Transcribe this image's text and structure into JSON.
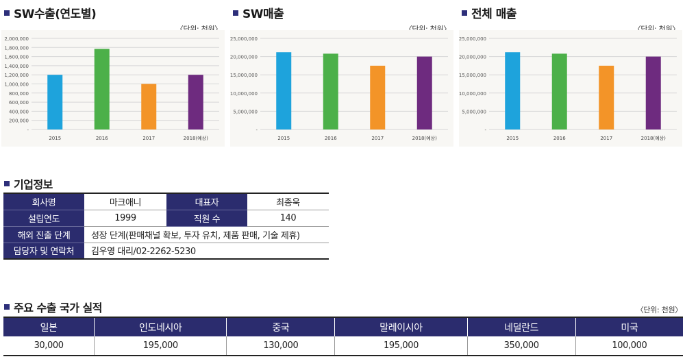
{
  "charts": {
    "export": {
      "title": "SW수출(연도별)",
      "unit": "〈단위: 천원〉"
    },
    "sales": {
      "title": "SW매출",
      "unit": "〈단위: 천원〉"
    },
    "total": {
      "title": "전체 매출",
      "unit": "〈단위: 천원〉"
    }
  },
  "chart_data": [
    {
      "type": "bar",
      "title": "SW수출(연도별)",
      "categories": [
        "2015",
        "2016",
        "2017",
        "2018(예상)"
      ],
      "values": [
        1200000,
        1770000,
        1000000,
        1200000
      ],
      "colors": [
        "#1ea3dc",
        "#4cb049",
        "#f39428",
        "#6e2b7f"
      ],
      "ylim": [
        0,
        2000000
      ],
      "yticks": [
        0,
        200000,
        400000,
        600000,
        800000,
        1000000,
        1200000,
        1400000,
        1600000,
        1800000,
        2000000
      ],
      "ytick_labels": [
        "-",
        "200,000",
        "400,000",
        "600,000",
        "800,000",
        "1,000,000",
        "1,200,000",
        "1,400,000",
        "1,600,000",
        "1,800,000",
        "2,000,000"
      ],
      "grid": true
    },
    {
      "type": "bar",
      "title": "SW매출",
      "categories": [
        "2015",
        "2016",
        "2017",
        "2018(예상)"
      ],
      "values": [
        21200000,
        20800000,
        17500000,
        20000000
      ],
      "colors": [
        "#1ea3dc",
        "#4cb049",
        "#f39428",
        "#6e2b7f"
      ],
      "ylim": [
        0,
        25000000
      ],
      "yticks": [
        0,
        5000000,
        10000000,
        15000000,
        20000000,
        25000000
      ],
      "ytick_labels": [
        "-",
        "5,000,000",
        "10,000,000",
        "15,000,000",
        "20,000,000",
        "25,000,000"
      ],
      "grid": true
    },
    {
      "type": "bar",
      "title": "전체 매출",
      "categories": [
        "2015",
        "2016",
        "2017",
        "2018(예상)"
      ],
      "values": [
        21200000,
        20800000,
        17500000,
        20000000
      ],
      "colors": [
        "#1ea3dc",
        "#4cb049",
        "#f39428",
        "#6e2b7f"
      ],
      "ylim": [
        0,
        25000000
      ],
      "yticks": [
        0,
        5000000,
        10000000,
        15000000,
        20000000,
        25000000
      ],
      "ytick_labels": [
        "-",
        "5,000,000",
        "10,000,000",
        "15,000,000",
        "20,000,000",
        "25,000,000"
      ],
      "grid": true
    }
  ],
  "company": {
    "section_title": "기업정보",
    "name_label": "회사명",
    "name_value": "마크애니",
    "ceo_label": "대표자",
    "ceo_value": "최종욱",
    "founded_label": "설립연도",
    "founded_value": "1999",
    "employees_label": "직원 수",
    "employees_value": "140",
    "stage_label": "해외 진출 단계",
    "stage_value": "성장 단계(판매채널 확보, 투자 유치, 제품 판매, 기술 제휴)",
    "contact_label": "담당자 및 연락처",
    "contact_value": "김우영 대리/02-2262-5230"
  },
  "exports": {
    "section_title": "주요 수출 국가 실적",
    "unit": "〈단위: 천원〉",
    "columns": [
      "일본",
      "인도네시아",
      "중국",
      "말레이시아",
      "네덜란드",
      "미국"
    ],
    "values": [
      "30,000",
      "195,000",
      "130,000",
      "195,000",
      "350,000",
      "100,000"
    ]
  }
}
